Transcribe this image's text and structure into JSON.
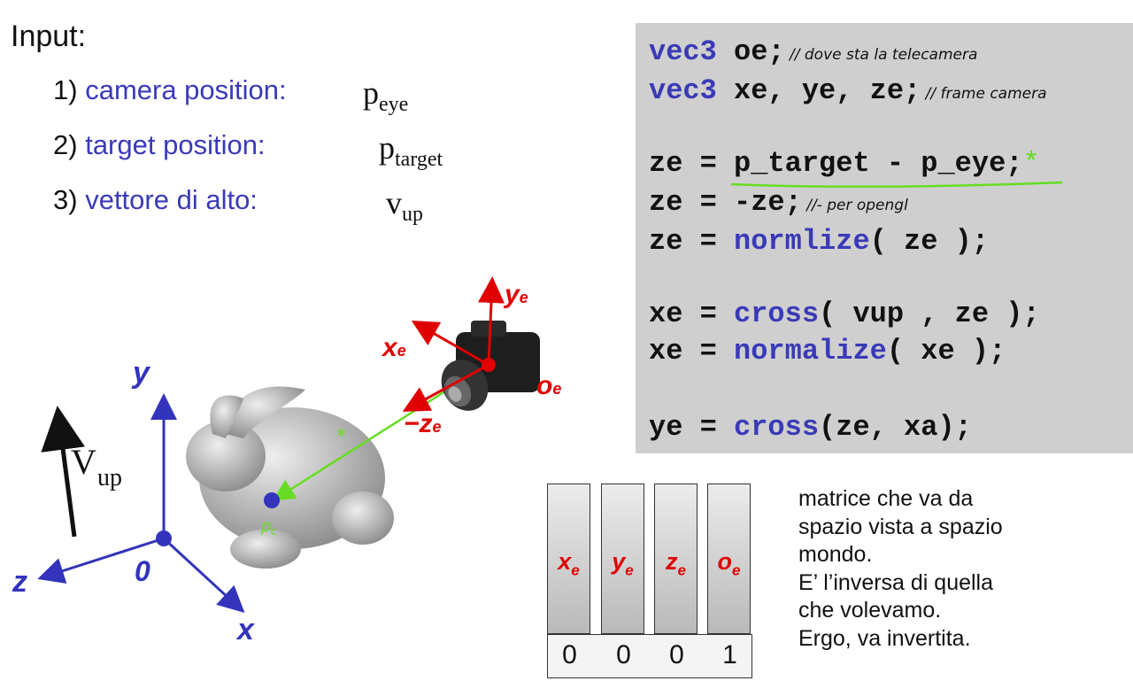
{
  "input": {
    "title": "Input:",
    "items": [
      {
        "num": "1)",
        "label": "camera position:",
        "symbol": "p",
        "sub": "eye"
      },
      {
        "num": "2)",
        "label": "target position:",
        "symbol": "p",
        "sub": "target"
      },
      {
        "num": "3)",
        "label": "vettore di alto:",
        "symbol": "v",
        "sub": "up"
      }
    ]
  },
  "code": {
    "l1_kw": "vec3",
    "l1_code": " oe;",
    "l1_comment": " // dove sta la telecamera",
    "l2_kw": "vec3",
    "l2_code": " xe, ye, ze;",
    "l2_comment": " // frame camera",
    "l3": "ze = p_target - p_eye;",
    "l3_mark": "*",
    "l4_code": "ze = -ze;",
    "l4_comment": " //- per opengl",
    "l5_pre": "ze = ",
    "l5_fn": "normlize",
    "l5_post": "( ze );",
    "l6_pre": "xe = ",
    "l6_fn": "cross",
    "l6_post": "( vup , ze );",
    "l7_pre": "xe = ",
    "l7_fn": "normalize",
    "l7_post": "( xe );",
    "l8_pre": "ye = ",
    "l8_fn": "cross",
    "l8_post": "(ze, xa);"
  },
  "diagram": {
    "axis_y": "y",
    "axis_z": "z",
    "axis_x": "x",
    "origin": "0",
    "vup_symbol": "V",
    "vup_sub": "up",
    "cam_x": "x",
    "cam_y": "y",
    "cam_z": "−z",
    "cam_sub": "e",
    "cam_origin": "o",
    "cam_origin_sub": "e",
    "hand_mark": "*",
    "target_mark": "p",
    "target_mark_sub": "c"
  },
  "matrix": {
    "columns": [
      {
        "sym": "x",
        "sub": "e"
      },
      {
        "sym": "y",
        "sub": "e"
      },
      {
        "sym": "z",
        "sub": "e"
      },
      {
        "sym": "o",
        "sub": "e"
      }
    ],
    "bottom": [
      "0",
      "0",
      "0",
      "1"
    ]
  },
  "description": [
    "matrice che va da",
    "spazio vista a spazio",
    "mondo.",
    "E’ l’inversa di quella",
    "che volevamo.",
    "Ergo, va invertita."
  ],
  "colors": {
    "blue": "#3a3ab8",
    "red": "#e00000",
    "green": "#66dd22",
    "code_bg": "#cfcfcf"
  }
}
